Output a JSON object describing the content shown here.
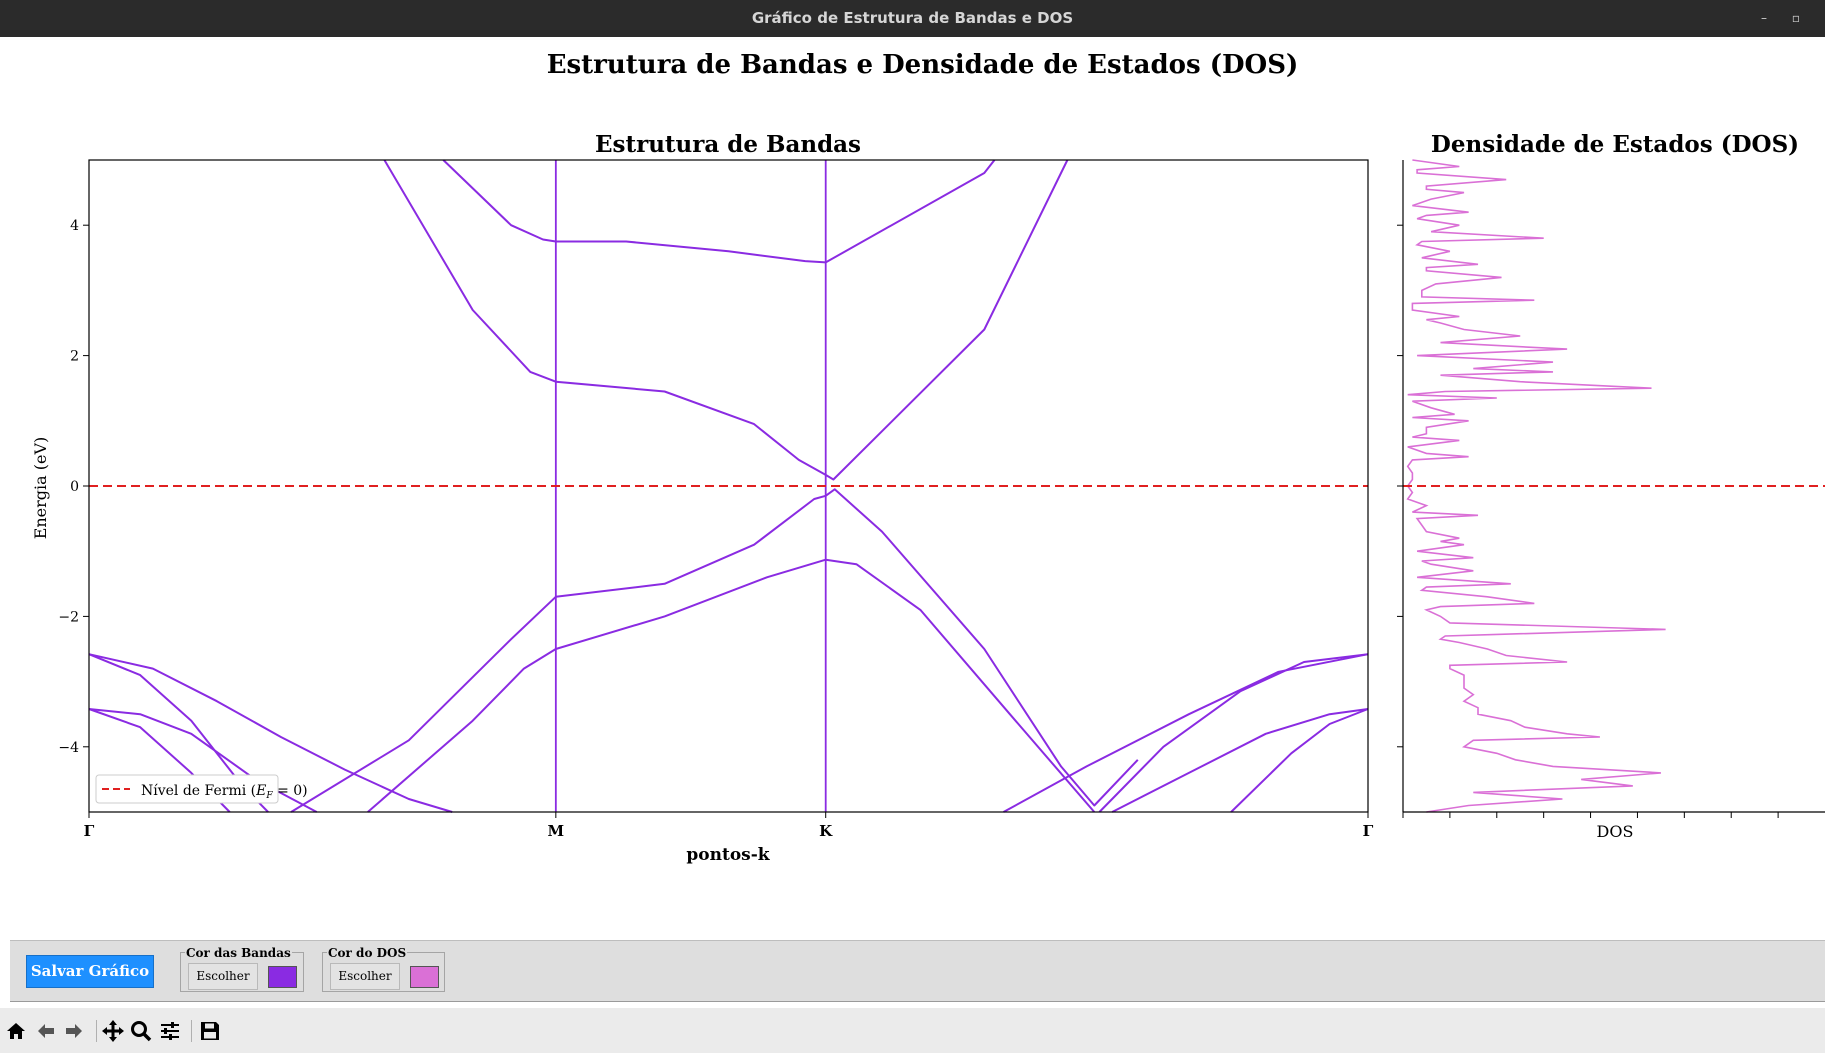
{
  "window": {
    "title": "Gráfico de Estrutura de Bandas e DOS"
  },
  "figure": {
    "suptitle": "Estrutura de Bandas e Densidade de Estados (DOS)"
  },
  "chart_data": [
    {
      "type": "line",
      "title": "Estrutura de Bandas",
      "xlabel": "pontos-k",
      "ylabel": "Energia (eV)",
      "ylim": [
        -5,
        5
      ],
      "xlim": [
        0,
        1
      ],
      "xticks": [
        {
          "pos": 0.0,
          "label": "Γ"
        },
        {
          "pos": 0.365,
          "label": "M"
        },
        {
          "pos": 0.576,
          "label": "K"
        },
        {
          "pos": 1.0,
          "label": "Γ"
        }
      ],
      "yticks": [
        -4,
        -2,
        0,
        2,
        4
      ],
      "band_color": "#8a2be2",
      "fermi": {
        "energy": 0,
        "color": "#e02020",
        "style": "dashed",
        "legend_prefix": "Nível de Fermi (",
        "legend_math": "E",
        "legend_sub": "F",
        "legend_suffix": " = 0)"
      },
      "legend_position": "lower-left",
      "series": [
        {
          "x": [
            0.231,
            0.3,
            0.345,
            0.365,
            0.45,
            0.52,
            0.555,
            0.576,
            0.582,
            0.7,
            0.765
          ],
          "y": [
            5.0,
            2.7,
            1.75,
            1.6,
            1.45,
            0.95,
            0.4,
            0.17,
            0.1,
            2.4,
            5.0
          ]
        },
        {
          "x": [
            0.277,
            0.33,
            0.355,
            0.365,
            0.42,
            0.5,
            0.56,
            0.576,
            0.7,
            0.708
          ],
          "y": [
            5.0,
            4.0,
            3.78,
            3.75,
            3.75,
            3.6,
            3.45,
            3.43,
            4.8,
            5.0
          ]
        },
        {
          "x": [
            0.158,
            0.25,
            0.33,
            0.365,
            0.45,
            0.52,
            0.567,
            0.576
          ],
          "y": [
            -5.0,
            -3.9,
            -2.35,
            -1.7,
            -1.5,
            -0.9,
            -0.2,
            -0.15
          ]
        },
        {
          "x": [
            0.576,
            0.583,
            0.62,
            0.7,
            0.76,
            0.786,
            0.82
          ],
          "y": [
            -0.15,
            -0.05,
            -0.7,
            -2.5,
            -4.3,
            -4.9,
            -4.2
          ]
        },
        {
          "x": [
            0.218,
            0.3,
            0.34,
            0.365,
            0.45,
            0.53,
            0.576,
            0.6,
            0.65,
            0.72,
            0.786
          ],
          "y": [
            -5.0,
            -3.6,
            -2.8,
            -2.5,
            -2.0,
            -1.4,
            -1.13,
            -1.2,
            -1.9,
            -3.5,
            -5.0
          ]
        },
        {
          "x": [
            0.0,
            0.04,
            0.08,
            0.12,
            0.14
          ],
          "y": [
            -2.58,
            -2.9,
            -3.6,
            -4.6,
            -5.0
          ]
        },
        {
          "x": [
            0.0,
            0.04,
            0.08,
            0.13,
            0.178
          ],
          "y": [
            -3.42,
            -3.5,
            -3.8,
            -4.5,
            -5.0
          ]
        },
        {
          "x": [
            0.0,
            0.05,
            0.1,
            0.15,
            0.2,
            0.25,
            0.284
          ],
          "y": [
            -2.58,
            -2.8,
            -3.3,
            -3.85,
            -4.35,
            -4.8,
            -5.0
          ]
        },
        {
          "x": [
            0.0,
            0.04,
            0.08,
            0.11
          ],
          "y": [
            -3.42,
            -3.7,
            -4.4,
            -5.0
          ]
        },
        {
          "x": [
            0.79,
            0.84,
            0.9,
            0.95,
            1.0
          ],
          "y": [
            -5.0,
            -4.0,
            -3.15,
            -2.7,
            -2.58
          ]
        },
        {
          "x": [
            0.715,
            0.78,
            0.86,
            0.93,
            1.0
          ],
          "y": [
            -5.0,
            -4.3,
            -3.5,
            -2.85,
            -2.58
          ]
        },
        {
          "x": [
            0.8,
            0.86,
            0.92,
            0.97,
            1.0
          ],
          "y": [
            -5.0,
            -4.4,
            -3.8,
            -3.5,
            -3.42
          ]
        },
        {
          "x": [
            0.893,
            0.94,
            0.97,
            1.0
          ],
          "y": [
            -5.0,
            -4.1,
            -3.65,
            -3.42
          ]
        }
      ]
    },
    {
      "type": "line",
      "title": "Densidade de Estados (DOS)",
      "xlabel": "DOS",
      "orientation": "horizontal",
      "ylim": [
        -5,
        5
      ],
      "xlim": [
        0,
        9
      ],
      "dos_color": "#da70d6",
      "series": [
        {
          "name": "DOS",
          "energy": [
            5.0,
            4.9,
            4.85,
            4.8,
            4.7,
            4.6,
            4.55,
            4.5,
            4.4,
            4.3,
            4.2,
            4.15,
            4.1,
            4.0,
            3.9,
            3.8,
            3.75,
            3.7,
            3.6,
            3.5,
            3.4,
            3.35,
            3.3,
            3.2,
            3.1,
            3.0,
            2.9,
            2.85,
            2.8,
            2.7,
            2.6,
            2.55,
            2.5,
            2.4,
            2.3,
            2.2,
            2.1,
            2.0,
            1.9,
            1.8,
            1.75,
            1.7,
            1.6,
            1.5,
            1.45,
            1.4,
            1.35,
            1.3,
            1.2,
            1.1,
            1.05,
            1.0,
            0.9,
            0.8,
            0.75,
            0.7,
            0.6,
            0.5,
            0.45,
            0.4,
            0.3,
            0.2,
            0.1,
            0.0,
            -0.1,
            -0.2,
            -0.3,
            -0.4,
            -0.45,
            -0.5,
            -0.6,
            -0.7,
            -0.8,
            -0.85,
            -0.9,
            -1.0,
            -1.1,
            -1.15,
            -1.2,
            -1.3,
            -1.4,
            -1.5,
            -1.55,
            -1.6,
            -1.7,
            -1.8,
            -1.85,
            -1.9,
            -2.0,
            -2.1,
            -2.2,
            -2.3,
            -2.35,
            -2.4,
            -2.5,
            -2.6,
            -2.7,
            -2.75,
            -2.8,
            -2.9,
            -3.0,
            -3.1,
            -3.2,
            -3.3,
            -3.4,
            -3.5,
            -3.6,
            -3.7,
            -3.8,
            -3.85,
            -3.9,
            -4.0,
            -4.1,
            -4.2,
            -4.3,
            -4.4,
            -4.5,
            -4.6,
            -4.7,
            -4.8,
            -4.9,
            -5.0
          ],
          "dos": [
            0.2,
            1.2,
            0.3,
            0.3,
            2.2,
            0.5,
            0.5,
            1.3,
            0.6,
            0.2,
            1.4,
            0.5,
            0.3,
            1.2,
            0.6,
            3.0,
            0.4,
            0.3,
            1.0,
            0.4,
            1.6,
            0.5,
            0.5,
            2.1,
            0.7,
            0.4,
            0.4,
            2.8,
            0.2,
            0.2,
            1.2,
            0.5,
            0.8,
            1.3,
            2.5,
            0.8,
            3.5,
            0.3,
            3.2,
            1.5,
            3.2,
            0.8,
            2.5,
            5.3,
            0.9,
            0.1,
            2.0,
            0.2,
            0.6,
            1.1,
            0.2,
            1.4,
            0.5,
            0.5,
            0.2,
            1.2,
            0.1,
            0.5,
            1.4,
            0.2,
            0.1,
            0.2,
            0.2,
            0.1,
            0.2,
            0.1,
            0.5,
            0.2,
            1.6,
            0.3,
            0.4,
            0.5,
            1.2,
            0.8,
            1.3,
            0.3,
            1.5,
            0.4,
            0.6,
            1.5,
            0.3,
            2.3,
            0.5,
            0.4,
            1.8,
            2.8,
            0.8,
            0.5,
            0.8,
            1.0,
            5.6,
            0.9,
            0.8,
            1.2,
            1.8,
            2.2,
            3.5,
            1.0,
            1.0,
            1.3,
            1.3,
            1.3,
            1.5,
            1.3,
            1.6,
            1.6,
            2.3,
            2.6,
            3.5,
            4.2,
            1.5,
            1.3,
            2.0,
            2.4,
            3.2,
            5.5,
            3.8,
            4.9,
            1.5,
            3.4,
            1.4,
            0.5
          ]
        }
      ]
    }
  ],
  "controls": {
    "save_label": "Salvar Gráfico",
    "band_group_label": "Cor das Bandas",
    "band_choose_label": "Escolher",
    "band_color": "#8a2be2",
    "dos_group_label": "Cor do DOS",
    "dos_choose_label": "Escolher",
    "dos_color": "#da70d6"
  },
  "toolbar": {
    "icons": [
      "home-icon",
      "back-icon",
      "forward-icon",
      "pan-icon",
      "zoom-icon",
      "configure-subplots-icon",
      "save-icon"
    ]
  }
}
